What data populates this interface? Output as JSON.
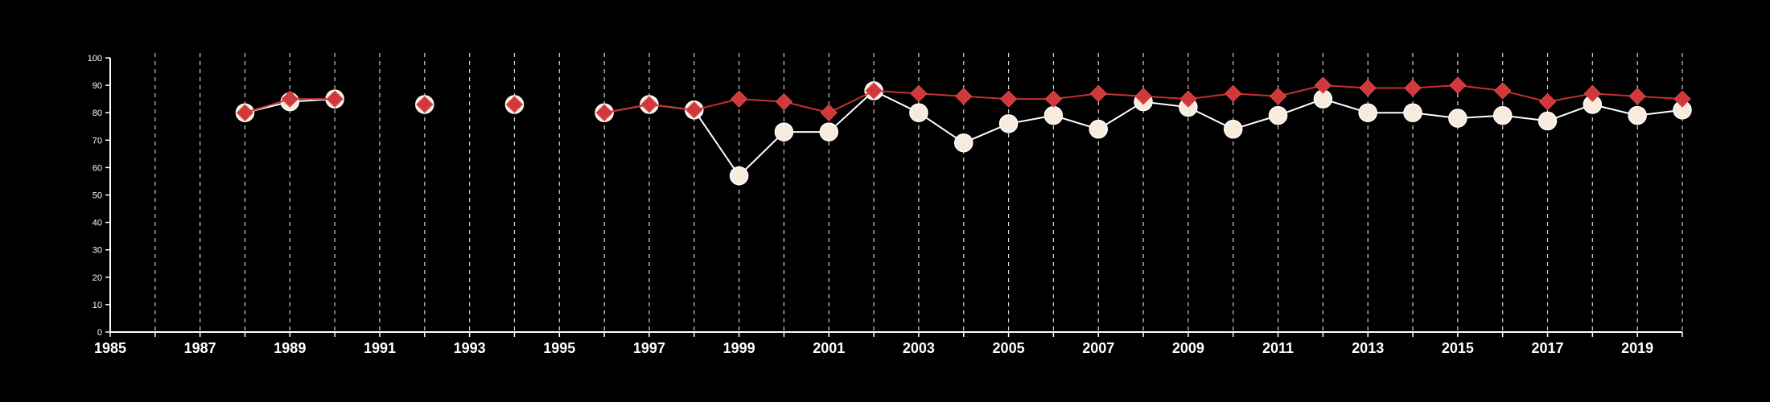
{
  "chart_data": {
    "type": "line",
    "title": "",
    "xlabel": "",
    "ylabel": "",
    "xlim": [
      1985,
      2020
    ],
    "ylim": [
      0,
      100
    ],
    "x_ticks": [
      "1985",
      "1987",
      "1989",
      "1991",
      "1993",
      "1995",
      "1997",
      "1999",
      "2001",
      "2003",
      "2005",
      "2007",
      "2009",
      "2011",
      "2013",
      "2015",
      "2017",
      "2019"
    ],
    "y_ticks": [
      "0",
      "10",
      "20",
      "30",
      "40",
      "50",
      "60",
      "70",
      "80",
      "90",
      "100"
    ],
    "vertical_grid": true,
    "grid_style": "dashed",
    "background": "#000000",
    "series": [
      {
        "marker": "circle",
        "color": "#ffffff",
        "marker_fill": "#f7ecdc",
        "points": [
          [
            1988,
            80
          ],
          [
            1989,
            84
          ],
          [
            1990,
            85
          ],
          [
            1992,
            83
          ],
          [
            1994,
            83
          ],
          [
            1996,
            80
          ],
          [
            1997,
            83
          ],
          [
            1998,
            81
          ],
          [
            1999,
            57
          ],
          [
            2000,
            73
          ],
          [
            2001,
            73
          ],
          [
            2002,
            88
          ],
          [
            2003,
            80
          ],
          [
            2004,
            69
          ],
          [
            2005,
            76
          ],
          [
            2006,
            79
          ],
          [
            2007,
            74
          ],
          [
            2008,
            84
          ],
          [
            2009,
            82
          ],
          [
            2010,
            74
          ],
          [
            2011,
            79
          ],
          [
            2012,
            85
          ],
          [
            2013,
            80
          ],
          [
            2014,
            80
          ],
          [
            2015,
            78
          ],
          [
            2016,
            79
          ],
          [
            2017,
            77
          ],
          [
            2018,
            83
          ],
          [
            2019,
            79
          ],
          [
            2020,
            81
          ]
        ]
      },
      {
        "marker": "diamond",
        "color": "#c53030",
        "marker_fill": "#d0393c",
        "points": [
          [
            1988,
            80
          ],
          [
            1989,
            85
          ],
          [
            1990,
            85
          ],
          [
            1992,
            83
          ],
          [
            1994,
            83
          ],
          [
            1996,
            80
          ],
          [
            1997,
            83
          ],
          [
            1998,
            81
          ],
          [
            1999,
            85
          ],
          [
            2000,
            84
          ],
          [
            2001,
            80
          ],
          [
            2002,
            88
          ],
          [
            2003,
            87
          ],
          [
            2004,
            86
          ],
          [
            2005,
            85
          ],
          [
            2006,
            85
          ],
          [
            2007,
            87
          ],
          [
            2008,
            86
          ],
          [
            2009,
            85
          ],
          [
            2010,
            87
          ],
          [
            2011,
            86
          ],
          [
            2012,
            90
          ],
          [
            2013,
            89
          ],
          [
            2014,
            89
          ],
          [
            2015,
            90
          ],
          [
            2016,
            88
          ],
          [
            2017,
            84
          ],
          [
            2018,
            87
          ],
          [
            2019,
            86
          ],
          [
            2020,
            85
          ]
        ]
      }
    ]
  }
}
